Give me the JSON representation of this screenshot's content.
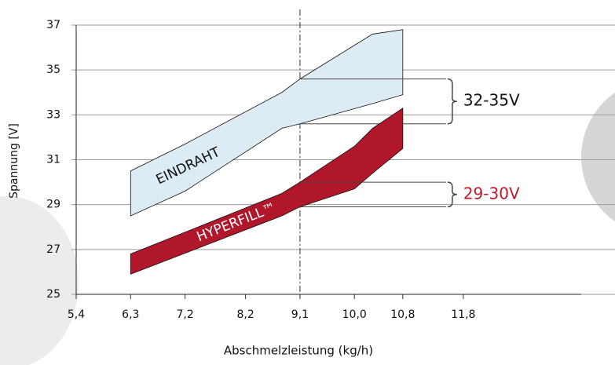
{
  "chart_data": {
    "type": "range-area",
    "x_label": "Abschmelzleistung (kg/h)",
    "y_label": "Spannung [V]",
    "xlim": [
      5.4,
      13.75
    ],
    "xticks": [
      {
        "value": 5.4,
        "label": "5,4"
      },
      {
        "value": 6.3,
        "label": "6,3"
      },
      {
        "value": 7.2,
        "label": "7,2"
      },
      {
        "value": 8.2,
        "label": "8,2"
      },
      {
        "value": 9.1,
        "label": "9,1"
      },
      {
        "value": 10.0,
        "label": "10,0"
      },
      {
        "value": 10.8,
        "label": "10,8"
      },
      {
        "value": 11.8,
        "label": "11,8"
      }
    ],
    "ylim": [
      25,
      37
    ],
    "yticks": [
      25,
      27,
      29,
      31,
      33,
      35,
      37
    ],
    "grid": true,
    "vline": 9.1,
    "series": [
      {
        "name": "EINDRAHT",
        "color": "#dcebf4",
        "text_color": "#111111",
        "annotation": "32-35V",
        "annotation_color": "#111111",
        "x": [
          6.3,
          7.2,
          8.8,
          9.1,
          10.3,
          10.8
        ],
        "upper": [
          30.5,
          31.7,
          34.0,
          34.6,
          36.6,
          36.8
        ],
        "lower": [
          28.5,
          29.6,
          32.4,
          32.6,
          33.5,
          33.9
        ]
      },
      {
        "name": "HYPERFILL™",
        "color": "#b0172b",
        "text_color": "#ffffff",
        "annotation": "29-30V",
        "annotation_color": "#c0182b",
        "x": [
          6.3,
          8.8,
          9.1,
          10.0,
          10.3,
          10.8
        ],
        "upper": [
          26.8,
          29.5,
          30.0,
          31.6,
          32.4,
          33.3
        ],
        "lower": [
          25.9,
          28.5,
          28.9,
          29.7,
          30.4,
          31.5
        ]
      }
    ]
  }
}
